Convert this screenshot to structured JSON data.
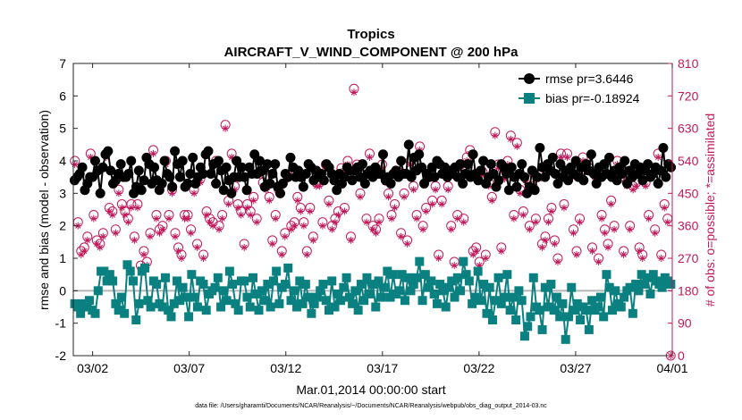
{
  "chart_data": {
    "type": "line",
    "title": "Tropics",
    "subtitle": "AIRCRAFT_V_WIND_COMPONENT @ 200 hPa",
    "xlabel": "Mar.01,2014 00:00:00 start",
    "ylabel": "rmse and bias (model - observation)",
    "ylabel_right": "# of obs: o=possible; *=assimilated",
    "footnote": "data file: /Users/gharamti/Documents/NCAR/Reanalysis/~/Documents/NCAR/Reanalysis/webpub/obs_diag_output_2014-03.nc",
    "xlim": [
      1,
      32
    ],
    "ylim": [
      -2,
      7
    ],
    "ylim_right": [
      0,
      810
    ],
    "x_ticks": [
      {
        "value": 2,
        "label": "03/02"
      },
      {
        "value": 7,
        "label": "03/07"
      },
      {
        "value": 12,
        "label": "03/12"
      },
      {
        "value": 17,
        "label": "03/17"
      },
      {
        "value": 22,
        "label": "03/22"
      },
      {
        "value": 27,
        "label": "03/27"
      },
      {
        "value": 32,
        "label": "04/01"
      }
    ],
    "y_ticks_left": [
      "-2",
      "-1",
      "0",
      "1",
      "2",
      "3",
      "4",
      "5",
      "6",
      "7"
    ],
    "y_ticks_right": [
      "0",
      "90",
      "180",
      "270",
      "360",
      "450",
      "540",
      "630",
      "720",
      "810"
    ],
    "legend": [
      {
        "name": "rmse pr=3.6446",
        "color": "#000000",
        "marker": "circle"
      },
      {
        "name": "bias pr=-0.18924",
        "color": "#0b8080",
        "marker": "square"
      }
    ],
    "legend_position": "top-right",
    "series": [
      {
        "name": "rmse pr=3.6446",
        "color": "#000000",
        "values": [
          3.4,
          3.5,
          3.6,
          3.8,
          3.1,
          3.3,
          3.5,
          3.5,
          4.0,
          3.7,
          3.0,
          3.8,
          4.2,
          4.3,
          3.7,
          3.3,
          3.4,
          3.6,
          3.9,
          3.5,
          3.5,
          3.6,
          4.0,
          3.0,
          3.2,
          3.7,
          3.1,
          3.4,
          4.1,
          3.9,
          3.3,
          3.8,
          3.4,
          3.1,
          3.3,
          4.0,
          3.6,
          3.5,
          3.2,
          4.3,
          3.9,
          3.5,
          4.0,
          3.2,
          3.3,
          3.6,
          4.1,
          3.3,
          3.5,
          3.8,
          3.6,
          4.2,
          4.3,
          3.6,
          3.9,
          3.3,
          4.0,
          3.7,
          3.1,
          3.8,
          3.4,
          3.0,
          3.5,
          4.0,
          3.5,
          3.8,
          3.5,
          3.1,
          3.8,
          3.6,
          4.2,
          3.6,
          4.0,
          3.7,
          3.2,
          3.9,
          3.3,
          3.6,
          3.9,
          3.2,
          3.0,
          3.3,
          3.6,
          3.5,
          4.1,
          3.8,
          3.5,
          3.7,
          3.5,
          3.2,
          3.6,
          3.9,
          3.8,
          3.4,
          3.7,
          3.5,
          3.6,
          3.4,
          3.9,
          3.8,
          3.6,
          3.4,
          3.1,
          3.6,
          3.3,
          3.5,
          3.8,
          3.7,
          3.4,
          3.7,
          3.8,
          3.5,
          3.9,
          3.3,
          3.6,
          3.7,
          3.5,
          3.8,
          3.6,
          3.6,
          4.2,
          3.4,
          3.5,
          3.3,
          3.6,
          3.7,
          3.5,
          4.0,
          3.6,
          3.6,
          4.5,
          3.5,
          4.1,
          3.7,
          4.2,
          3.8,
          3.3,
          3.6,
          3.5,
          3.8,
          3.5,
          4.0,
          3.9,
          3.6,
          3.8,
          3.5,
          3.7,
          3.6,
          3.8,
          3.5,
          3.9,
          3.3,
          3.6,
          3.9,
          3.5,
          4.2,
          3.6,
          3.4,
          3.7,
          4.0,
          3.3,
          3.5,
          3.9,
          3.6,
          3.2,
          3.4,
          3.9,
          3.8,
          3.6,
          3.1,
          3.8,
          3.5,
          3.2,
          3.6,
          3.9,
          3.5,
          3.0,
          3.2,
          3.7,
          3.1,
          3.5,
          4.4,
          3.8,
          3.5,
          3.9,
          3.7,
          4.1,
          3.6,
          3.3,
          3.9,
          3.5,
          3.7,
          3.4,
          3.8,
          3.6,
          4.0,
          3.5,
          3.8,
          3.4,
          3.9,
          3.7,
          4.2,
          3.6,
          3.3,
          3.8,
          3.5,
          3.9,
          3.6,
          4.1,
          3.5,
          3.7,
          3.4,
          3.8,
          3.6,
          4.0,
          3.3,
          3.7,
          3.5,
          3.9,
          3.6,
          3.8,
          3.4,
          3.7,
          3.9,
          3.5,
          3.6,
          3.8,
          3.3,
          3.7,
          4.4,
          3.5,
          3.9,
          3.8
        ]
      },
      {
        "name": "bias pr=-0.18924",
        "color": "#0b8080",
        "values": [
          -0.4,
          -0.5,
          -0.7,
          -0.4,
          -0.5,
          -0.3,
          -0.6,
          -0.7,
          0.0,
          0.6,
          0.6,
          0.3,
          0.5,
          0.3,
          -0.4,
          -0.6,
          -0.2,
          -0.7,
          0.8,
          0.6,
          0.3,
          -0.9,
          -0.4,
          0.6,
          0.7,
          -0.3,
          -0.5,
          0.3,
          0.2,
          -0.4,
          -0.5,
          0.4,
          -0.6,
          -0.8,
          -0.4,
          0.3,
          -0.3,
          0.1,
          -0.2,
          -0.8,
          0.5,
          -0.2,
          -0.5,
          0.3,
          0.2,
          -0.6,
          -0.1,
          0.0,
          0.1,
          0.4,
          -0.5,
          0.0,
          -0.3,
          0.6,
          0.2,
          -0.4,
          -0.6,
          0.3,
          0.3,
          -0.2,
          -0.5,
          0.4,
          -0.1,
          -0.6,
          0.0,
          -0.3,
          0.2,
          -0.5,
          0.3,
          0.6,
          -0.4,
          0.1,
          0.2,
          0.7,
          -0.3,
          0.0,
          -0.5,
          0.3,
          -0.4,
          0.2,
          -0.2,
          -0.7,
          -0.4,
          -0.2,
          0.0,
          0.2,
          -0.3,
          -0.6,
          0.3,
          -0.5,
          -0.1,
          -0.3,
          0.1,
          0.4,
          -0.2,
          -0.4,
          0.0,
          -0.6,
          0.2,
          -0.3,
          0.4,
          -0.1,
          0.2,
          -0.5,
          0.3,
          -0.2,
          0.1,
          0.6,
          -0.2,
          0.5,
          -0.1,
          0.0,
          0.5,
          -0.3,
          0.4,
          0.0,
          0.2,
          0.4,
          0.9,
          -0.3,
          0.5,
          0.1,
          0.3,
          -0.1,
          -0.4,
          0.2,
          0.0,
          -0.5,
          0.1,
          0.3,
          -0.2,
          0.4,
          0.0,
          0.9,
          0.5,
          0.3,
          -0.4,
          -0.2,
          0.6,
          -0.3,
          0.2,
          -0.7,
          0.1,
          -0.9,
          -0.3,
          0.4,
          -0.4,
          -0.2,
          0.5,
          -0.6,
          -0.2,
          -0.9,
          0.0,
          -0.3,
          -1.4,
          -1.1,
          -0.8,
          0.4,
          -0.5,
          -0.6,
          -1.2,
          0.1,
          -0.5,
          0.2,
          -0.6,
          -0.2,
          -0.8,
          -0.4,
          -1.5,
          -0.8,
          0.1,
          -0.6,
          -0.4,
          -0.9,
          -0.5,
          -0.6,
          -1.2,
          -0.3,
          -0.6,
          -0.5,
          -0.2,
          -0.8,
          0.5,
          0.1,
          -0.6,
          0.0,
          -0.4,
          -0.5,
          -0.2,
          0.0,
          0.1,
          -0.7,
          0.2,
          0.0,
          0.5,
          0.2,
          0.4,
          -0.1,
          0.5,
          0.3,
          0.2,
          0.1,
          0.4,
          0.3,
          0.2
        ]
      },
      {
        "name": "# of obs possible",
        "color": "#c2185b",
        "axis": "right",
        "values": [
          540,
          370,
          290,
          300,
          330,
          560,
          390,
          320,
          310,
          340,
          560,
          410,
          400,
          350,
          460,
          420,
          400,
          380,
          420,
          330,
          420,
          250,
          290,
          260,
          340,
          570,
          390,
          350,
          360,
          540,
          390,
          460,
          340,
          300,
          280,
          390,
          390,
          350,
          460,
          310,
          490,
          280,
          400,
          380,
          370,
          540,
          360,
          390,
          640,
          430,
          560,
          470,
          420,
          400,
          310,
          420,
          400,
          440,
          380,
          510,
          480,
          470,
          440,
          320,
          390,
          460,
          290,
          340,
          500,
          360,
          370,
          440,
          410,
          370,
          290,
          410,
          330,
          480,
          480,
          370,
          530,
          430,
          360,
          380,
          400,
          520,
          410,
          540,
          330,
          740,
          530,
          450,
          500,
          380,
          560,
          360,
          350,
          380,
          530,
          490,
          450,
          390,
          420,
          510,
          340,
          450,
          320,
          540,
          470,
          390,
          580,
          360,
          410,
          500,
          430,
          470,
          280,
          430,
          520,
          470,
          360,
          260,
          390,
          530,
          380,
          550,
          570,
          290,
          300,
          260,
          510,
          280,
          480,
          440,
          620,
          530,
          300,
          500,
          540,
          610,
          390,
          590,
          460,
          400,
          490,
          360,
          470,
          380,
          500,
          310,
          330,
          380,
          410,
          320,
          270,
          560,
          420,
          560,
          500,
          350,
          290,
          380,
          550,
          520,
          520,
          300,
          500,
          270,
          390,
          350,
          310,
          430,
          360,
          540,
          510,
          290,
          480,
          360,
          470,
          480,
          300,
          280,
          480,
          390,
          520,
          350,
          560,
          280,
          420,
          380,
          0
        ]
      },
      {
        "name": "# of obs assimilated",
        "color": "#c2185b",
        "axis": "right",
        "values": [
          530,
          360,
          280,
          290,
          320,
          550,
          380,
          310,
          300,
          330,
          550,
          400,
          390,
          340,
          450,
          410,
          390,
          370,
          410,
          320,
          410,
          240,
          280,
          250,
          330,
          560,
          380,
          340,
          350,
          530,
          380,
          450,
          330,
          290,
          270,
          380,
          380,
          340,
          450,
          300,
          480,
          270,
          390,
          370,
          360,
          530,
          350,
          380,
          630,
          420,
          550,
          460,
          410,
          390,
          300,
          410,
          390,
          430,
          370,
          500,
          470,
          460,
          430,
          310,
          380,
          450,
          280,
          330,
          490,
          350,
          360,
          430,
          400,
          360,
          280,
          400,
          320,
          470,
          470,
          360,
          520,
          420,
          350,
          370,
          390,
          510,
          400,
          530,
          320,
          730,
          520,
          440,
          490,
          370,
          550,
          350,
          340,
          370,
          520,
          480,
          440,
          380,
          410,
          500,
          330,
          440,
          310,
          530,
          460,
          380,
          570,
          350,
          400,
          490,
          420,
          460,
          270,
          420,
          510,
          460,
          350,
          250,
          380,
          520,
          370,
          540,
          560,
          280,
          290,
          250,
          500,
          270,
          470,
          430,
          610,
          520,
          290,
          490,
          530,
          600,
          380,
          580,
          450,
          390,
          480,
          350,
          460,
          370,
          490,
          300,
          320,
          370,
          400,
          310,
          260,
          550,
          410,
          550,
          490,
          340,
          280,
          370,
          540,
          510,
          510,
          290,
          490,
          260,
          380,
          340,
          300,
          420,
          350,
          530,
          500,
          280,
          470,
          350,
          460,
          470,
          290,
          270,
          470,
          380,
          510,
          340,
          550,
          270,
          410,
          370,
          0
        ]
      }
    ]
  }
}
